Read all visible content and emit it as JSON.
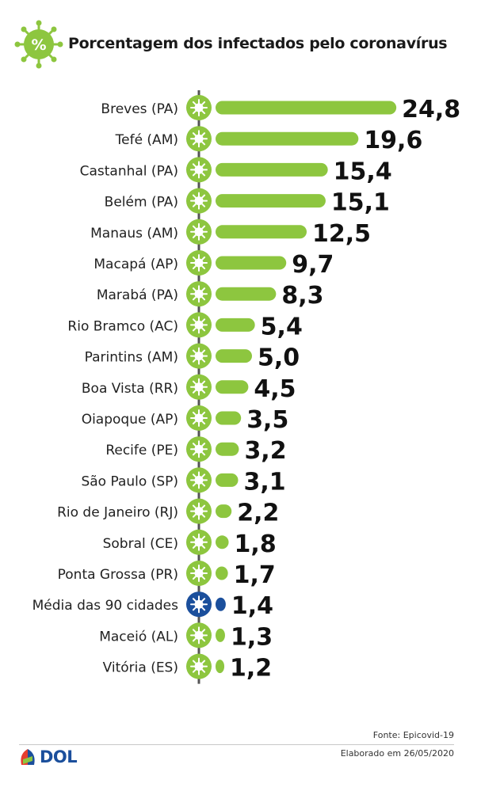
{
  "header": {
    "title": "Porcentagem dos infectados pelo coronavírus",
    "badge_symbol": "%"
  },
  "chart_data": {
    "type": "bar",
    "orientation": "horizontal",
    "categories": [
      "Breves (PA)",
      "Tefé (AM)",
      "Castanhal (PA)",
      "Belém (PA)",
      "Manaus (AM)",
      "Macapá (AP)",
      "Marabá (PA)",
      "Rio Bramco (AC)",
      "Parintins (AM)",
      "Boa Vista (RR)",
      "Oiapoque (AP)",
      "Recife (PE)",
      "São Paulo (SP)",
      "Rio de Janeiro (RJ)",
      "Sobral (CE)",
      "Ponta Grossa (PR)",
      "Média das 90 cidades",
      "Maceió (AL)",
      "Vitória (ES)"
    ],
    "values": [
      24.8,
      19.6,
      15.4,
      15.1,
      12.5,
      9.7,
      8.3,
      5.4,
      5.0,
      4.5,
      3.5,
      3.2,
      3.1,
      2.2,
      1.8,
      1.7,
      1.4,
      1.3,
      1.2
    ],
    "value_labels": [
      "24,8",
      "19,6",
      "15,4",
      "15,1",
      "12,5",
      "9,7",
      "8,3",
      "5,4",
      "5,0",
      "4,5",
      "3,5",
      "3,2",
      "3,1",
      "2,2",
      "1,8",
      "1,7",
      "1,4",
      "1,3",
      "1,2"
    ],
    "highlight_category": "Média das 90 cidades",
    "colors": {
      "bar": "#8dc63f",
      "highlight": "#1b4f9c",
      "axis": "#555555"
    },
    "legend": "none",
    "grid": false
  },
  "footer": {
    "source": "Fonte: Epicovid-19",
    "date": "Elaborado em 26/05/2020",
    "logo_text": "DOL"
  }
}
